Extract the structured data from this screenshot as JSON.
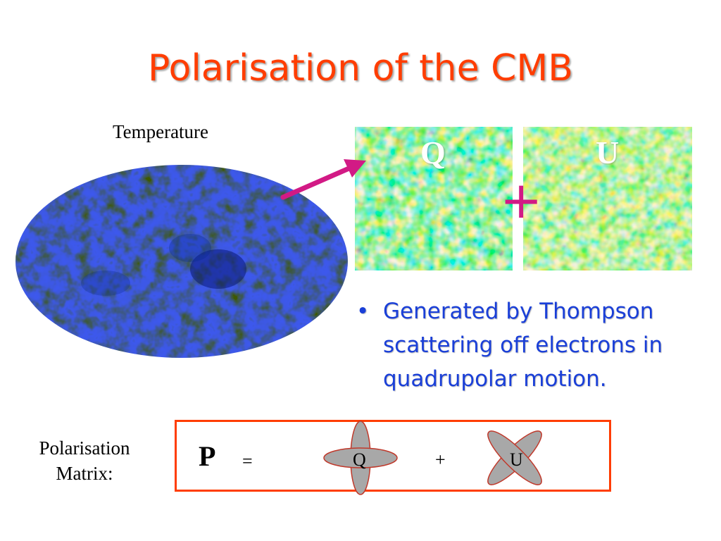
{
  "slide": {
    "title": "Polarisation of the CMB",
    "temperature_label": "Temperature",
    "patches": {
      "q_label": "Q",
      "u_label": "U"
    },
    "big_plus": "+",
    "bullet": {
      "marker": "•",
      "text": "Generated by Thompson scattering off electrons in quadrupolar motion."
    },
    "matrix": {
      "label_line1": "Polarisation",
      "label_line2": "Matrix:",
      "p_symbol": "P",
      "equals": "=",
      "q_label": "Q",
      "plus": "+",
      "u_label": "U"
    }
  },
  "colors": {
    "title": "#ff3d00",
    "bullet_text": "#1a3fd8",
    "arrow": "#d21a85",
    "box_border": "#ff3d00",
    "petal_fill": "#a8a8a8",
    "petal_stroke": "#c0392b"
  }
}
